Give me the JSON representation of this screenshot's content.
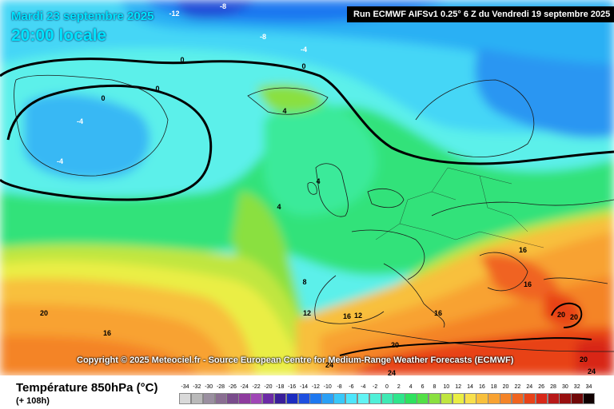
{
  "header": {
    "date": "Mardi 23 septembre 2025",
    "time": "20:00 locale",
    "run": "Run ECMWF AIFSv1 0.25° 6 Z du Vendredi 19 septembre 2025"
  },
  "copyright": "Copyright © 2025 Meteociel.fr - Source European Centre for Medium-Range Weather Forecasts (ECMWF)",
  "parameter": {
    "title": "Température 850hPa (°C)",
    "subtitle": "(+ 108h)"
  },
  "legend": {
    "labels": [
      "-34",
      "-32",
      "-30",
      "-28",
      "-26",
      "-24",
      "-22",
      "-20",
      "-18",
      "-16",
      "-14",
      "-12",
      "-10",
      "-8",
      "-6",
      "-4",
      "-2",
      "0",
      "2",
      "4",
      "6",
      "8",
      "10",
      "12",
      "14",
      "16",
      "18",
      "20",
      "22",
      "24",
      "26",
      "28",
      "30",
      "32",
      "34"
    ],
    "colors": [
      "#d9d9d9",
      "#b9b9b9",
      "#9a8fa0",
      "#8a6e92",
      "#7a4c8c",
      "#8e3b9e",
      "#a046b6",
      "#6c2aa6",
      "#3a1e9a",
      "#1c2cc0",
      "#1e4fe0",
      "#1e78f0",
      "#2aa0f6",
      "#38c8fa",
      "#4ee6fc",
      "#62f4f4",
      "#50f0d8",
      "#3eeab4",
      "#2ee68c",
      "#2ee25e",
      "#52e046",
      "#8ae040",
      "#c0e640",
      "#eaee44",
      "#f8e04c",
      "#f8c03c",
      "#f8a232",
      "#f48428",
      "#f06420",
      "#e84218",
      "#d82818",
      "#b81818",
      "#981010",
      "#700808",
      "#100000"
    ]
  },
  "map_labels": [
    {
      "text": "-12"
    },
    {
      "text": "-8"
    },
    {
      "text": "-8"
    },
    {
      "text": "-4"
    },
    {
      "text": "0"
    },
    {
      "text": "0"
    },
    {
      "text": "0"
    },
    {
      "text": "0"
    },
    {
      "text": "-4"
    },
    {
      "text": "-4"
    },
    {
      "text": "4"
    },
    {
      "text": "4"
    },
    {
      "text": "4"
    },
    {
      "text": "8"
    },
    {
      "text": "12"
    },
    {
      "text": "16"
    },
    {
      "text": "12"
    },
    {
      "text": "16"
    },
    {
      "text": "16"
    },
    {
      "text": "16"
    },
    {
      "text": "20"
    },
    {
      "text": "20"
    },
    {
      "text": "20"
    },
    {
      "text": "20"
    },
    {
      "text": "16"
    },
    {
      "text": "20"
    },
    {
      "text": "24"
    },
    {
      "text": "24"
    },
    {
      "text": "24"
    }
  ]
}
